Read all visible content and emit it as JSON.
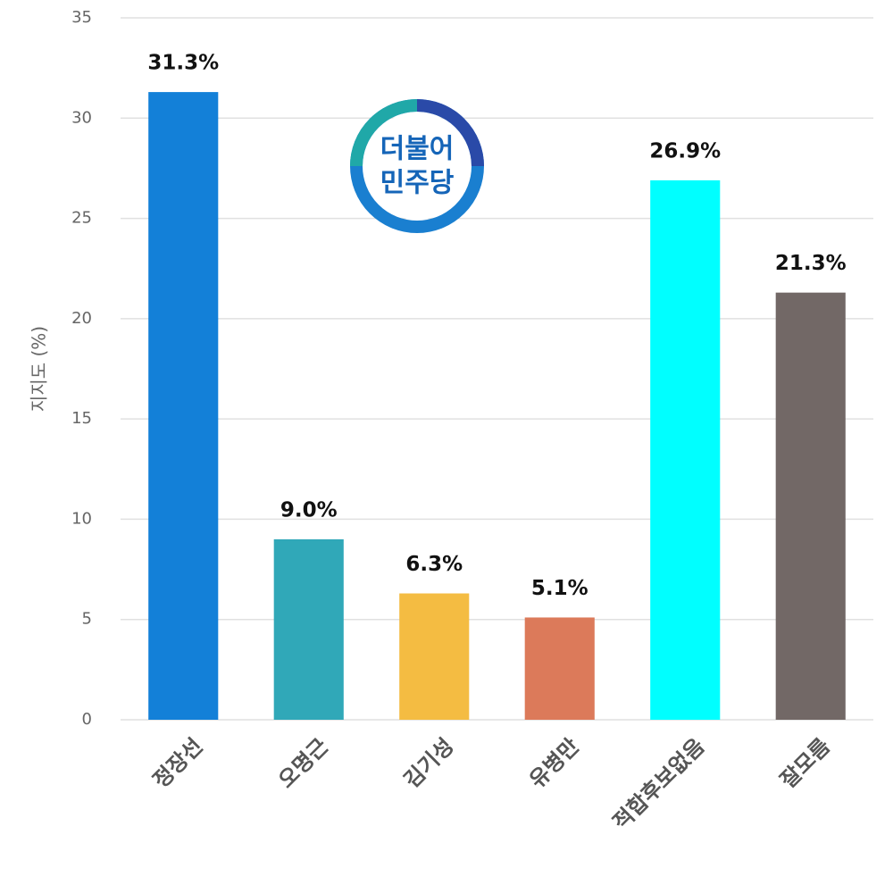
{
  "chart_data": {
    "type": "bar",
    "y_label": "지지도 (%)",
    "categories": [
      "정장선",
      "오명근",
      "김기성",
      "유병만",
      "적합후보없음",
      "잘모름"
    ],
    "values": [
      31.3,
      9.0,
      6.3,
      5.1,
      26.9,
      21.3
    ],
    "value_labels": [
      "31.3%",
      "9.0%",
      "6.3%",
      "5.1%",
      "26.9%",
      "21.3%"
    ],
    "colors": [
      "#1380d8",
      "#30a8b8",
      "#f4bc42",
      "#dc7a5a",
      "#00ffff",
      "#726866"
    ],
    "ylim": [
      0,
      35
    ],
    "yticks": [
      0,
      5,
      10,
      15,
      20,
      25,
      30,
      35
    ],
    "grid": true,
    "logo": [
      "더불어",
      "민주당"
    ]
  }
}
